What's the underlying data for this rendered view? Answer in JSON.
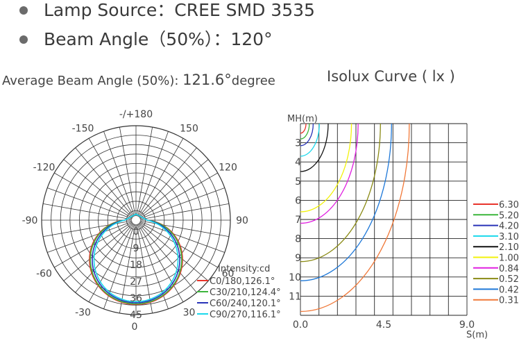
{
  "specs": [
    {
      "label": "Lamp Source：",
      "value": "CREE SMD 3535"
    },
    {
      "label": "Beam Angle（50%）：",
      "value": "120°"
    }
  ],
  "avg_beam": {
    "label": "Average Beam Angle (50%): ",
    "value": "121.6°",
    "unit": "degree"
  },
  "isolux_title": "Isolux Curve ( lx )",
  "chart_data": [
    {
      "type": "polar",
      "angle_labels": [
        {
          "deg": 180,
          "text": "-/+180"
        },
        {
          "deg": 150,
          "text": "150"
        },
        {
          "deg": 120,
          "text": "120"
        },
        {
          "deg": 90,
          "text": "90"
        },
        {
          "deg": 60,
          "text": "60"
        },
        {
          "deg": 30,
          "text": "30"
        },
        {
          "deg": -150,
          "text": "-150"
        },
        {
          "deg": -120,
          "text": "-120"
        },
        {
          "deg": -90,
          "text": "-90"
        },
        {
          "deg": -60,
          "text": "-60"
        },
        {
          "deg": -30,
          "text": "-30"
        },
        {
          "deg": 0,
          "text": "0"
        }
      ],
      "radial_ticks": [
        0,
        9,
        18,
        27,
        36,
        45
      ],
      "r_max": 45,
      "intensity_label": "Intensity:cd",
      "series": [
        {
          "name": "C0/180,126.1°",
          "color": "#e8342b",
          "peak": 39.5,
          "beam": 126.1
        },
        {
          "name": "C30/210,124.4°",
          "color": "#3cb53c",
          "peak": 39.2,
          "beam": 124.4
        },
        {
          "name": "C60/240,120.1°",
          "color": "#2832b8",
          "peak": 38.6,
          "beam": 120.1
        },
        {
          "name": "C90/270,116.1°",
          "color": "#1ad8ec",
          "peak": 38.0,
          "beam": 116.1
        }
      ]
    },
    {
      "type": "isolux",
      "ylabel": "MH(m)",
      "xlabel": "S(m)",
      "x_ticks": [
        "0.0",
        "4.5",
        "9.0"
      ],
      "y_ticks": [
        "3",
        "4",
        "5",
        "6",
        "7",
        "8",
        "9",
        "10",
        "11"
      ],
      "y_range": [
        2,
        12
      ],
      "x_range": [
        0,
        9
      ],
      "levels": [
        {
          "value": "6.30",
          "color": "#e8342b",
          "h": 2.5
        },
        {
          "value": "5.20",
          "color": "#3cb53c",
          "h": 2.8
        },
        {
          "value": "4.20",
          "color": "#2832b8",
          "h": 3.15
        },
        {
          "value": "3.10",
          "color": "#1ad8ec",
          "h": 3.7
        },
        {
          "value": "2.10",
          "color": "#111111",
          "h": 4.5
        },
        {
          "value": "1.00",
          "color": "#f2f20a",
          "h": 6.6
        },
        {
          "value": "0.84",
          "color": "#e020e0",
          "h": 7.2
        },
        {
          "value": "0.52",
          "color": "#8a8a14",
          "h": 9.2
        },
        {
          "value": "0.42",
          "color": "#1e78d8",
          "h": 10.2
        },
        {
          "value": "0.31",
          "color": "#f07838",
          "h": 11.8
        }
      ]
    }
  ]
}
